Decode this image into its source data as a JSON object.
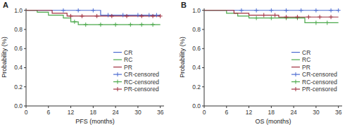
{
  "chart_data": [
    {
      "type": "line",
      "title": "A",
      "x_label": "PFS (months)",
      "y_label": "Probability (%)",
      "xlim": [
        0,
        37
      ],
      "xticks": [
        0,
        6,
        12,
        18,
        24,
        30,
        36
      ],
      "ylim": [
        0,
        1.02
      ],
      "yticks": [
        {
          "value": 0,
          "label": "0.0"
        },
        0.2,
        0.4,
        0.6,
        0.8,
        {
          "value": 1,
          "label": "1.0"
        }
      ],
      "legend": "right",
      "series": [
        {
          "name": "CR",
          "color": "#4a6ad0",
          "line_style": "step",
          "x": [
            0,
            20,
            36
          ],
          "values": [
            1,
            0.95,
            0.95
          ]
        },
        {
          "name": "RC",
          "color": "#4aa84a",
          "line_style": "step",
          "x": [
            0,
            3,
            6,
            10,
            12,
            14,
            36
          ],
          "values": [
            1,
            0.98,
            0.95,
            0.92,
            0.88,
            0.85,
            0.85
          ]
        },
        {
          "name": "PR",
          "color": "#a03040",
          "line_style": "step",
          "x": [
            0,
            7,
            11,
            36
          ],
          "values": [
            1,
            0.97,
            0.94,
            0.94
          ]
        },
        {
          "name": "CR-censored",
          "color": "#4a6ad0",
          "line_style": "none",
          "marker": "plus",
          "x": [
            10,
            14,
            18,
            22,
            26,
            30,
            33,
            35
          ],
          "values": [
            1,
            1,
            1,
            0.95,
            0.95,
            0.95,
            0.95,
            0.95
          ]
        },
        {
          "name": "RC-censored",
          "color": "#4aa84a",
          "line_style": "none",
          "marker": "plus",
          "x": [
            13,
            16,
            20,
            24,
            28,
            31,
            34
          ],
          "values": [
            0.88,
            0.85,
            0.85,
            0.85,
            0.85,
            0.85,
            0.85
          ]
        },
        {
          "name": "PR-censored",
          "color": "#a03040",
          "line_style": "none",
          "marker": "plus",
          "x": [
            12,
            15,
            19,
            23,
            27,
            31,
            34,
            36
          ],
          "values": [
            0.94,
            0.94,
            0.94,
            0.94,
            0.94,
            0.94,
            0.94,
            0.94
          ]
        }
      ]
    },
    {
      "type": "line",
      "title": "B",
      "x_label": "OS (months)",
      "y_label": "Probability (%)",
      "xlim": [
        0,
        37
      ],
      "xticks": [
        0,
        6,
        12,
        18,
        24,
        30,
        36
      ],
      "ylim": [
        0,
        1.02
      ],
      "yticks": [
        {
          "value": 0,
          "label": "0.0"
        },
        0.2,
        0.4,
        0.6,
        0.8,
        {
          "value": 1,
          "label": "1.0"
        }
      ],
      "legend": "right",
      "series": [
        {
          "name": "CR",
          "color": "#4a6ad0",
          "line_style": "step",
          "x": [
            0,
            36
          ],
          "values": [
            1,
            1
          ]
        },
        {
          "name": "RC",
          "color": "#4aa84a",
          "line_style": "step",
          "x": [
            0,
            6,
            9,
            12,
            27,
            36
          ],
          "values": [
            1,
            0.97,
            0.94,
            0.92,
            0.87,
            0.87
          ]
        },
        {
          "name": "PR",
          "color": "#a03040",
          "line_style": "step",
          "x": [
            0,
            8,
            12,
            20,
            36
          ],
          "values": [
            1,
            0.97,
            0.95,
            0.93,
            0.93
          ]
        },
        {
          "name": "CR-censored",
          "color": "#4a6ad0",
          "line_style": "none",
          "marker": "plus",
          "x": [
            10,
            14,
            18,
            22,
            26,
            30,
            34,
            36
          ],
          "values": [
            1,
            1,
            1,
            1,
            1,
            1,
            1,
            1
          ]
        },
        {
          "name": "RC-censored",
          "color": "#4aa84a",
          "line_style": "none",
          "marker": "plus",
          "x": [
            14,
            18,
            22,
            25,
            30,
            33
          ],
          "values": [
            0.92,
            0.92,
            0.92,
            0.92,
            0.87,
            0.87
          ]
        },
        {
          "name": "PR-censored",
          "color": "#a03040",
          "line_style": "none",
          "marker": "plus",
          "x": [
            16,
            19,
            22,
            25,
            28,
            31,
            34
          ],
          "values": [
            0.95,
            0.95,
            0.93,
            0.93,
            0.93,
            0.93,
            0.93
          ]
        }
      ]
    }
  ]
}
